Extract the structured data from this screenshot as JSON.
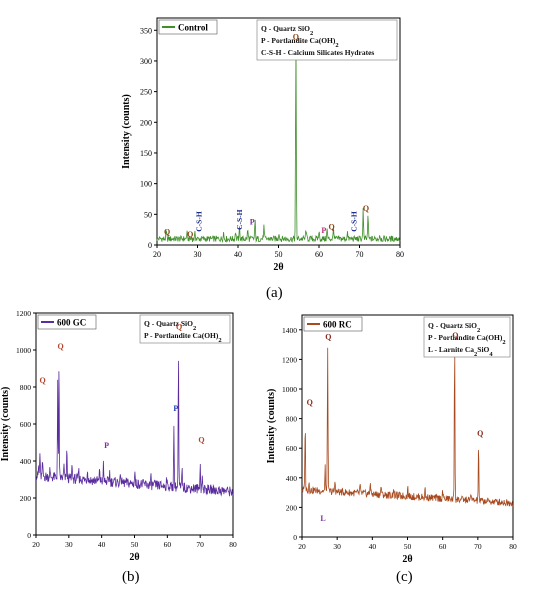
{
  "panel_labels": [
    "(a)",
    "(b)",
    "(c)"
  ],
  "chart_data": [
    {
      "type": "line",
      "panel": "(a)",
      "xlabel": "2θ",
      "ylabel": "Intensity (counts)",
      "xlim": [
        20,
        80
      ],
      "ylim": [
        0,
        370
      ],
      "xticks": [
        20,
        30,
        40,
        50,
        60,
        70,
        80
      ],
      "yticks": [
        0,
        50,
        100,
        150,
        200,
        250,
        300,
        350
      ],
      "series": [
        {
          "name": "Control",
          "color": "#3f8f2a",
          "baseline": 10,
          "peaks": [
            [
              22.3,
              12
            ],
            [
              27.4,
              10
            ],
            [
              29.4,
              9
            ],
            [
              36.4,
              12
            ],
            [
              39.4,
              14
            ],
            [
              40.4,
              18
            ],
            [
              42.4,
              15
            ],
            [
              44.2,
              30
            ],
            [
              46.4,
              20
            ],
            [
              50.1,
              12
            ],
            [
              54.3,
              330
            ],
            [
              56.8,
              17
            ],
            [
              60.0,
              13
            ],
            [
              62.0,
              16
            ],
            [
              63.6,
              20
            ],
            [
              67.0,
              12
            ],
            [
              70.9,
              50
            ],
            [
              72.1,
              40
            ],
            [
              75.0,
              8
            ]
          ]
        }
      ],
      "legend": {
        "position": "top-left",
        "box_color": "#3f8f2a"
      },
      "notes": {
        "position": "top-right",
        "lines": [
          {
            "head": "Q - ",
            "text": "Quartz SiO",
            "sub": "2"
          },
          {
            "head": "P - ",
            "text": "Portlandite Ca(OH)",
            "sub": "2"
          },
          {
            "head": "C-S-H - ",
            "text": "Calcium Silicates Hydrates",
            "sub": ""
          }
        ]
      },
      "annotations": [
        {
          "text": "Q",
          "x": 22.5,
          "y": 14,
          "color": "#8b4513",
          "rotate": false
        },
        {
          "text": "C-S-H",
          "x": 31,
          "y": 35,
          "color": "#1a2a8a",
          "rotate": true
        },
        {
          "text": "Q",
          "x": 28.2,
          "y": 10,
          "color": "#8b4513",
          "rotate": false
        },
        {
          "text": "C-S-H",
          "x": 41,
          "y": 38,
          "color": "#1a2a8a",
          "rotate": true
        },
        {
          "text": "P",
          "x": 43.5,
          "y": 30,
          "color": "#7d2da3",
          "rotate": false
        },
        {
          "text": "Q",
          "x": 54.3,
          "y": 332,
          "color": "#8b4513",
          "rotate": false
        },
        {
          "text": "P",
          "x": 61.2,
          "y": 16,
          "color": "#c0307a",
          "rotate": false
        },
        {
          "text": "Q",
          "x": 63.1,
          "y": 22,
          "color": "#8b4513",
          "rotate": false
        },
        {
          "text": "C-S-H",
          "x": 69.3,
          "y": 35,
          "color": "#1a2a8a",
          "rotate": true
        },
        {
          "text": "Q",
          "x": 71.6,
          "y": 52,
          "color": "#8b4513",
          "rotate": false
        }
      ]
    },
    {
      "type": "line",
      "panel": "(b)",
      "xlabel": "2θ",
      "ylabel": "Intensity (counts)",
      "xlim": [
        20,
        80
      ],
      "ylim": [
        0,
        1200
      ],
      "xticks": [
        20,
        30,
        40,
        50,
        60,
        70,
        80
      ],
      "yticks": [
        0,
        200,
        400,
        600,
        800,
        1000,
        1200
      ],
      "series": [
        {
          "name": "600 GC",
          "color": "#5b2c9e",
          "baseline_start": 320,
          "baseline_end": 235,
          "peaks": [
            [
              20.8,
              60
            ],
            [
              21.2,
              130
            ],
            [
              22.0,
              80
            ],
            [
              24.2,
              40
            ],
            [
              26.6,
              520
            ],
            [
              27.0,
              660
            ],
            [
              28.5,
              70
            ],
            [
              29.4,
              160
            ],
            [
              31.0,
              90
            ],
            [
              33.0,
              60
            ],
            [
              35.7,
              70
            ],
            [
              39.4,
              65
            ],
            [
              40.5,
              90
            ],
            [
              42.4,
              60
            ],
            [
              45.8,
              50
            ],
            [
              50.1,
              70
            ],
            [
              55.0,
              40
            ],
            [
              59.8,
              50
            ],
            [
              62.0,
              350
            ],
            [
              63.4,
              740
            ],
            [
              64.5,
              120
            ],
            [
              70.0,
              150
            ],
            [
              70.6,
              80
            ]
          ]
        }
      ],
      "legend": {
        "position": "top-left",
        "box_color": "#5b2c9e"
      },
      "notes": {
        "position": "top-right",
        "lines": [
          {
            "head": "Q - ",
            "text": "Quartz SiO",
            "sub": "2"
          },
          {
            "head": "P - ",
            "text": "Portlandite Ca(OH)",
            "sub": "2"
          }
        ]
      },
      "annotations": [
        {
          "text": "Q",
          "x": 22.0,
          "y": 810,
          "color": "#b5442a",
          "rotate": false
        },
        {
          "text": "Q",
          "x": 27.5,
          "y": 995,
          "color": "#b5442a",
          "rotate": false
        },
        {
          "text": "P",
          "x": 41.5,
          "y": 460,
          "color": "#7d2da3",
          "rotate": false
        },
        {
          "text": "P",
          "x": 62.6,
          "y": 660,
          "color": "#1a3ab0",
          "rotate": false
        },
        {
          "text": "Q",
          "x": 63.6,
          "y": 1100,
          "color": "#b5442a",
          "rotate": false
        },
        {
          "text": "Q",
          "x": 70.4,
          "y": 490,
          "color": "#b5442a",
          "rotate": false
        }
      ]
    },
    {
      "type": "line",
      "panel": "(c)",
      "xlabel": "2θ",
      "ylabel": "Intensity (counts)",
      "xlim": [
        20,
        80
      ],
      "ylim": [
        0,
        1500
      ],
      "xticks": [
        20,
        30,
        40,
        50,
        60,
        70,
        80
      ],
      "yticks": [
        0,
        200,
        400,
        600,
        800,
        1000,
        1200,
        1400
      ],
      "series": [
        {
          "name": "600 RC",
          "color": "#a84a1f",
          "baseline_start": 320,
          "baseline_end": 230,
          "peaks": [
            [
              20.9,
              470
            ],
            [
              22.0,
              60
            ],
            [
              26.6,
              170
            ],
            [
              27.3,
              1020
            ],
            [
              29.4,
              80
            ],
            [
              36.5,
              60
            ],
            [
              39.4,
              90
            ],
            [
              42.5,
              70
            ],
            [
              46.0,
              60
            ],
            [
              50.1,
              70
            ],
            [
              55.0,
              60
            ],
            [
              60.0,
              55
            ],
            [
              63.4,
              1100
            ],
            [
              68.0,
              60
            ],
            [
              70.2,
              400
            ]
          ]
        }
      ],
      "legend": {
        "position": "top-left",
        "box_color": "#a84a1f"
      },
      "notes": {
        "position": "top-right",
        "lines": [
          {
            "head": "Q - ",
            "text": "Quartz SiO",
            "sub": "2"
          },
          {
            "head": "P - ",
            "text": "Portlandite Ca(OH)",
            "sub": "2"
          },
          {
            "head": "L - ",
            "text": "Larnite Ca",
            "sub": "2",
            "tail": "SiO",
            "sub2": "4"
          }
        ]
      },
      "annotations": [
        {
          "text": "Q",
          "x": 22.2,
          "y": 880,
          "color": "#8b2a1a",
          "rotate": false
        },
        {
          "text": "Q",
          "x": 27.5,
          "y": 1320,
          "color": "#8b2a1a",
          "rotate": false
        },
        {
          "text": "L",
          "x": 26.0,
          "y": 95,
          "color": "#7d2da3",
          "rotate": false
        },
        {
          "text": "Q",
          "x": 63.6,
          "y": 1330,
          "color": "#8b2a1a",
          "rotate": false
        },
        {
          "text": "Q",
          "x": 70.7,
          "y": 670,
          "color": "#8b2a1a",
          "rotate": false
        }
      ]
    }
  ]
}
